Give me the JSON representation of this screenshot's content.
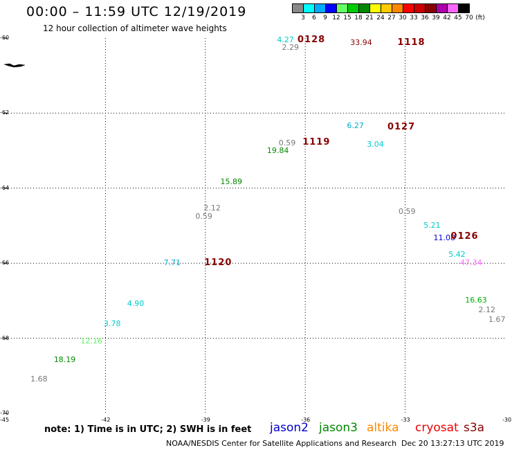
{
  "header": {
    "title": "00:00 – 11:59 UTC 12/19/2019",
    "subtitle": "12 hour collection of altimeter wave heights"
  },
  "color_scale": {
    "labels": [
      "3",
      "6",
      "9",
      "12",
      "15",
      "18",
      "21",
      "24",
      "27",
      "30",
      "33",
      "36",
      "39",
      "42",
      "45",
      "70",
      "(ft)"
    ],
    "colors": [
      "#888888",
      "#00ffff",
      "#00aaff",
      "#0000ff",
      "#66ff66",
      "#00cc00",
      "#008800",
      "#ffff00",
      "#ffcc00",
      "#ff8800",
      "#ff0000",
      "#cc0000",
      "#880000",
      "#aa00aa",
      "#ff66ff",
      "#000000"
    ]
  },
  "axes": {
    "lon_labels": [
      "-45",
      "-42",
      "-39",
      "-36",
      "-33",
      "-30"
    ],
    "lat_labels": [
      "-60",
      "-62",
      "-64",
      "-66",
      "-68",
      "-70"
    ]
  },
  "map": {
    "lon_range": [
      -45,
      -30
    ],
    "lat_range": [
      -70,
      -60
    ]
  },
  "observations": [
    {
      "v": "4.27",
      "lon": -36.6,
      "lat": -60.06,
      "color": "#00cccc"
    },
    {
      "v": "2.29",
      "lon": -36.45,
      "lat": -60.26,
      "color": "#777777"
    },
    {
      "v": "33.94",
      "lon": -34.4,
      "lat": -60.13,
      "color": "#880000"
    },
    {
      "v": "6.27",
      "lon": -34.5,
      "lat": -62.35,
      "color": "#00aacc"
    },
    {
      "v": "0.59",
      "lon": -36.55,
      "lat": -62.8,
      "color": "#777777"
    },
    {
      "v": "3.04",
      "lon": -33.9,
      "lat": -62.85,
      "color": "#00cccc"
    },
    {
      "v": "19.84",
      "lon": -36.9,
      "lat": -63.01,
      "color": "#008800"
    },
    {
      "v": "15.89",
      "lon": -38.3,
      "lat": -63.84,
      "color": "#008800"
    },
    {
      "v": "2.12",
      "lon": -38.8,
      "lat": -64.54,
      "color": "#777777"
    },
    {
      "v": "0.59",
      "lon": -39.05,
      "lat": -64.76,
      "color": "#777777"
    },
    {
      "v": "0.59",
      "lon": -32.95,
      "lat": -64.64,
      "color": "#777777"
    },
    {
      "v": "5.21",
      "lon": -32.2,
      "lat": -65.0,
      "color": "#00cccc"
    },
    {
      "v": "11.08",
      "lon": -31.9,
      "lat": -65.34,
      "color": "#0000cc"
    },
    {
      "v": "5.42",
      "lon": -31.45,
      "lat": -65.78,
      "color": "#00cccc"
    },
    {
      "v": "47.34",
      "lon": -31.1,
      "lat": -66.0,
      "color": "#ff66ff"
    },
    {
      "v": "7.71",
      "lon": -40.0,
      "lat": -66.0,
      "color": "#00aacc"
    },
    {
      "v": "4.90",
      "lon": -41.1,
      "lat": -67.08,
      "color": "#00cccc"
    },
    {
      "v": "3.78",
      "lon": -41.8,
      "lat": -67.62,
      "color": "#00cccc"
    },
    {
      "v": "16.63",
      "lon": -30.95,
      "lat": -66.99,
      "color": "#00aa00"
    },
    {
      "v": "2.12",
      "lon": -30.55,
      "lat": -67.25,
      "color": "#777777"
    },
    {
      "v": "1.67",
      "lon": -30.25,
      "lat": -67.5,
      "color": "#777777"
    },
    {
      "v": "12.16",
      "lon": -42.5,
      "lat": -68.08,
      "color": "#66ee66"
    },
    {
      "v": "18.19",
      "lon": -43.3,
      "lat": -68.58,
      "color": "#008800"
    },
    {
      "v": "1.68",
      "lon": -44.0,
      "lat": -69.1,
      "color": "#777777"
    }
  ],
  "pass_labels": [
    {
      "v": "0128",
      "lon": -35.9,
      "lat": -60.06,
      "color": "#880000"
    },
    {
      "v": "1118",
      "lon": -32.9,
      "lat": -60.12,
      "color": "#880000"
    },
    {
      "v": "0127",
      "lon": -33.2,
      "lat": -62.38,
      "color": "#880000"
    },
    {
      "v": "1119",
      "lon": -35.75,
      "lat": -62.78,
      "color": "#880000"
    },
    {
      "v": "0126",
      "lon": -31.3,
      "lat": -65.3,
      "color": "#880000"
    },
    {
      "v": "1120",
      "lon": -38.7,
      "lat": -66.0,
      "color": "#880000"
    }
  ],
  "note": "note: 1) Time is in UTC; 2) SWH is in feet",
  "satellites": [
    {
      "name": "jason2",
      "color": "#0000cc"
    },
    {
      "name": "jason3",
      "color": "#008800"
    },
    {
      "name": "altika",
      "color": "#ff8800"
    },
    {
      "name": "cryosat",
      "color": "#ee0000"
    },
    {
      "name": "s3a",
      "color": "#880000"
    }
  ],
  "footer": {
    "org": "NOAA/NESDIS Center for Satellite Applications and Research",
    "date": "Dec 20 13:27:13 UTC 2019"
  }
}
